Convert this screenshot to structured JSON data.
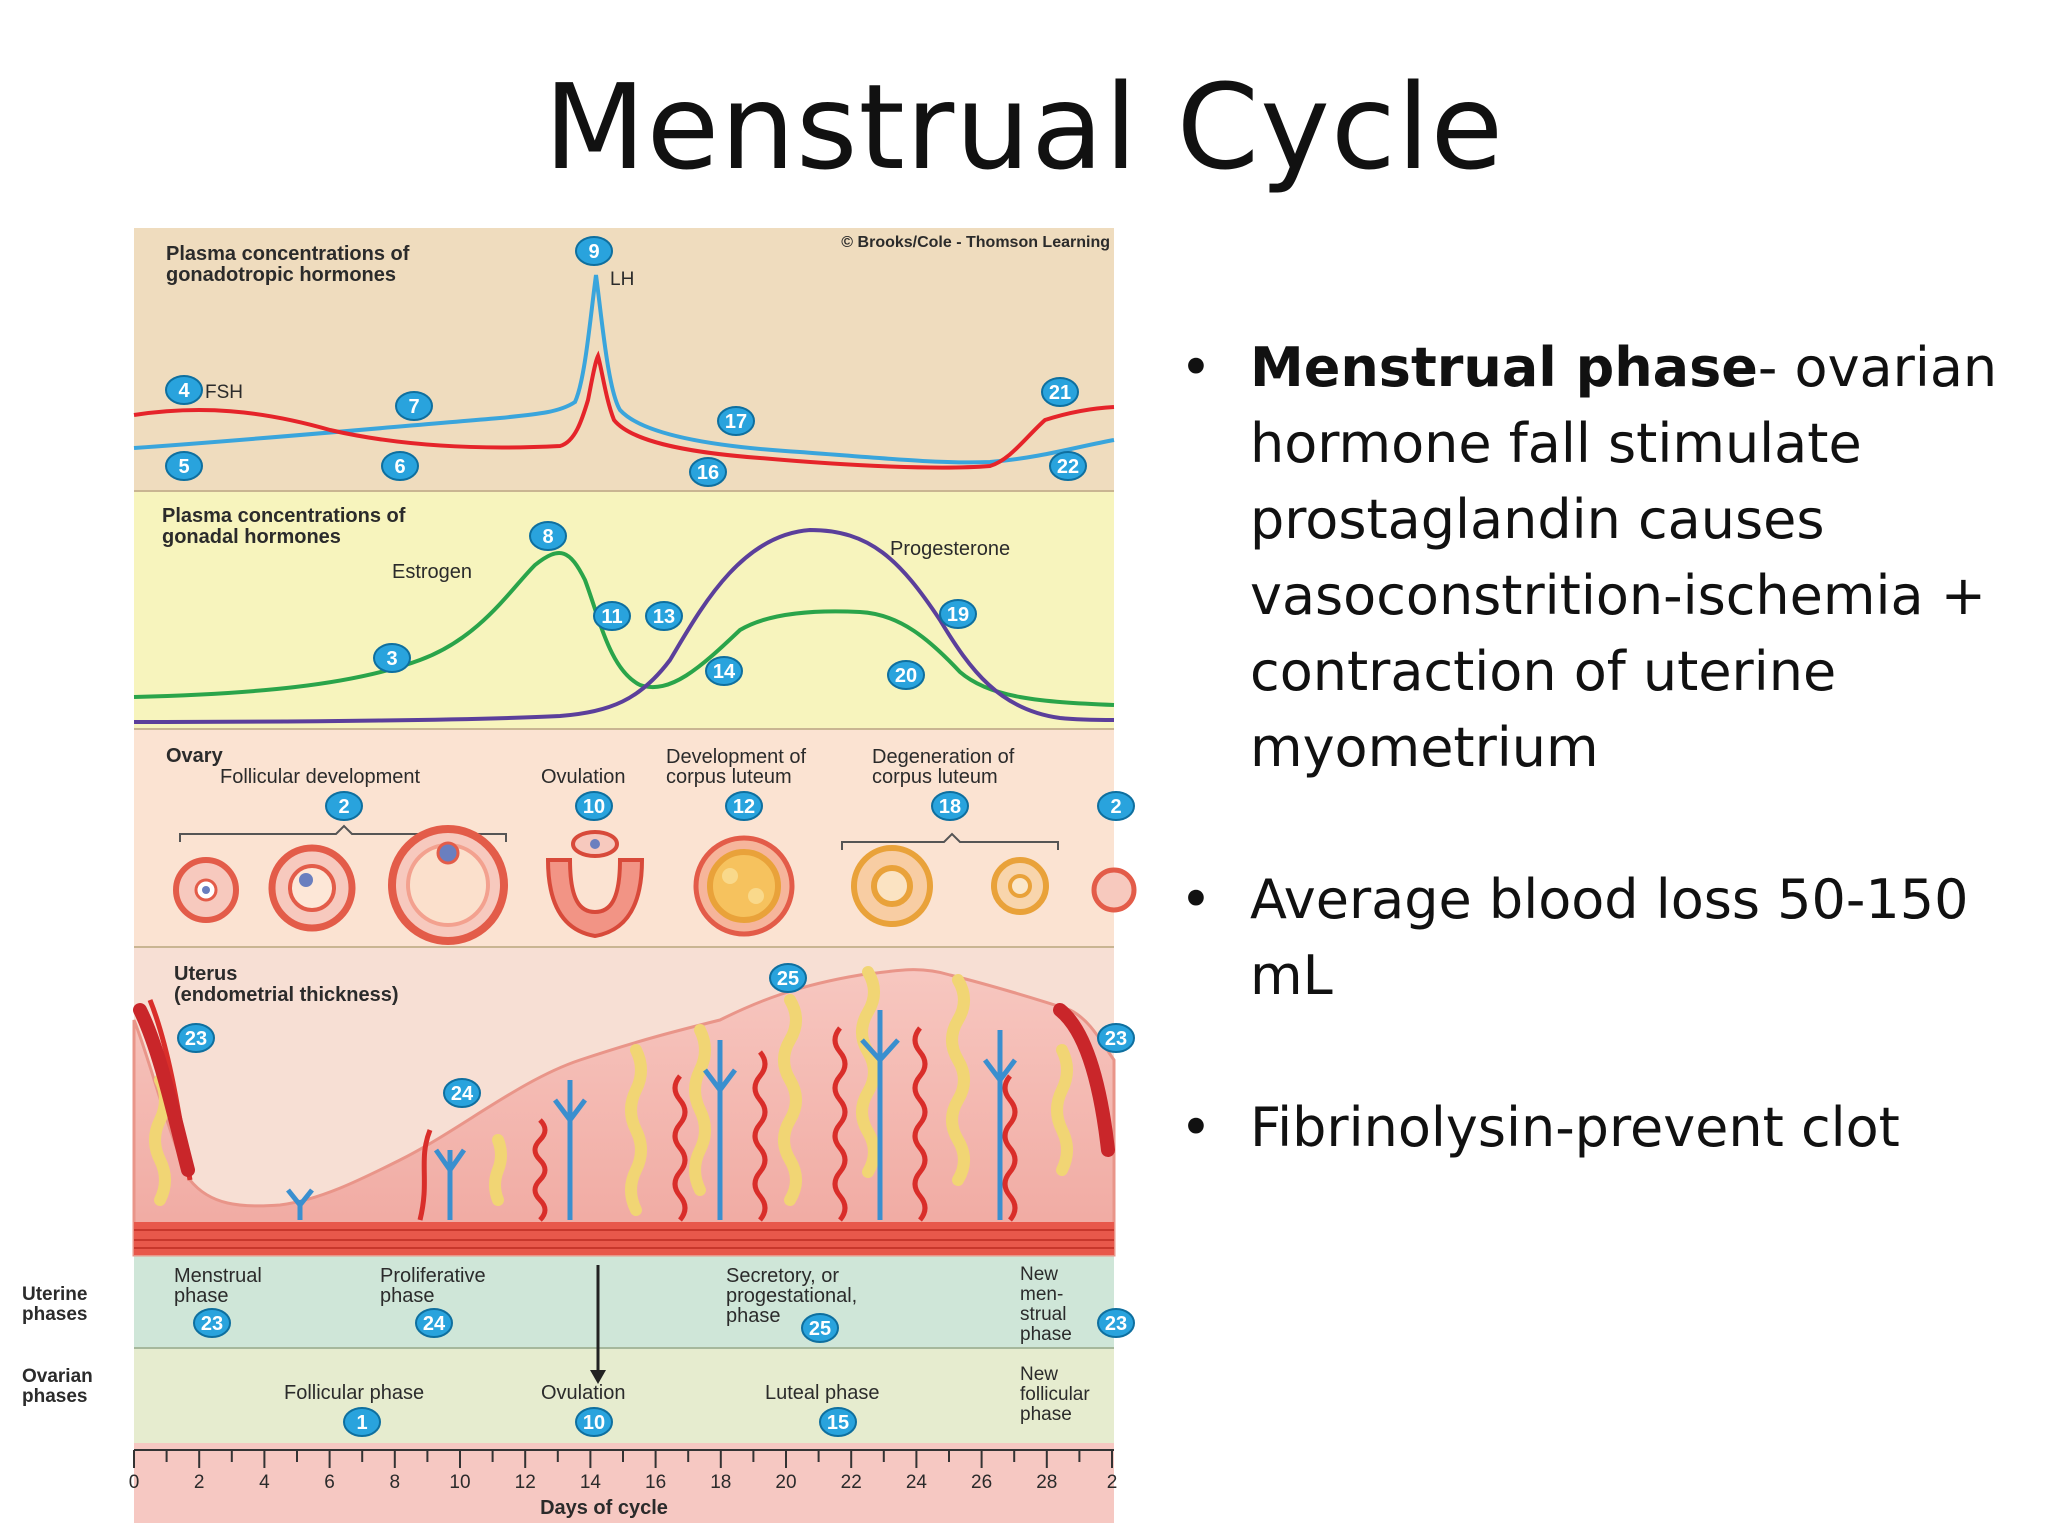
{
  "title": "Menstrual Cycle",
  "bullets": [
    {
      "bold": "Menstrual phase",
      "text": "- ovarian hormone fall stimulate prostaglandin causes vasoconstrition-ischemia + contraction of uterine myometrium"
    },
    {
      "bold": "",
      "text": "Average blood loss 50-150 mL"
    },
    {
      "bold": "",
      "text": "Fibrinolysin-prevent clot"
    }
  ],
  "diagram": {
    "copyright": "© Brooks/Cole - Thomson Learning",
    "panel1": {
      "title1": "Plasma concentrations of",
      "title2": "gonadotropic hormones",
      "lh": "LH",
      "fsh": "FSH"
    },
    "panel2": {
      "title1": "Plasma concentrations of",
      "title2": "gonadal hormones",
      "estrogen": "Estrogen",
      "progesterone": "Progesterone"
    },
    "panel3": {
      "title": "Ovary",
      "follicular": "Follicular development",
      "ovulation": "Ovulation",
      "dev1": "Development of",
      "dev2": "corpus luteum",
      "deg1": "Degeneration of",
      "deg2": "corpus luteum"
    },
    "panel4": {
      "title1": "Uterus",
      "title2": "(endometrial thickness)"
    },
    "uterine_phases": {
      "row_label1": "Uterine",
      "row_label2": "phases",
      "menstrual1": "Menstrual",
      "menstrual2": "phase",
      "prolif1": "Proliferative",
      "prolif2": "phase",
      "secr1": "Secretory, or",
      "secr2": "progestational,",
      "secr3": "phase",
      "new1": "New",
      "new2": "men-",
      "new3": "strual",
      "new4": "phase"
    },
    "ovarian_phases": {
      "row_label1": "Ovarian",
      "row_label2": "phases",
      "follicular": "Follicular phase",
      "ovulation": "Ovulation",
      "luteal": "Luteal phase",
      "new1": "New",
      "new2": "follicular",
      "new3": "phase"
    },
    "axis": {
      "label": "Days of cycle",
      "ticks": [
        "0",
        "2",
        "4",
        "6",
        "8",
        "10",
        "12",
        "14",
        "16",
        "18",
        "20",
        "22",
        "24",
        "26",
        "28",
        "2"
      ]
    },
    "badges": [
      "1",
      "2",
      "3",
      "4",
      "5",
      "6",
      "7",
      "8",
      "9",
      "10",
      "11",
      "12",
      "13",
      "14",
      "15",
      "16",
      "17",
      "18",
      "19",
      "20",
      "21",
      "22",
      "23",
      "24",
      "25"
    ],
    "colors": {
      "panel1_bg": "#efdcbe",
      "panel2_bg": "#f7f4bd",
      "panel3_bg": "#fbe3d2",
      "panel4_bg": "#f7dfd4",
      "uterine_bg": "#cfe6d8",
      "ovarian_bg": "#e6eccf",
      "axis_bg": "#f6c8c2",
      "fsh": "#e5242a",
      "lh": "#3aa5dc",
      "estrogen": "#2aa44a",
      "progesterone": "#5b3f9b",
      "badge": "#29a3dd"
    }
  }
}
